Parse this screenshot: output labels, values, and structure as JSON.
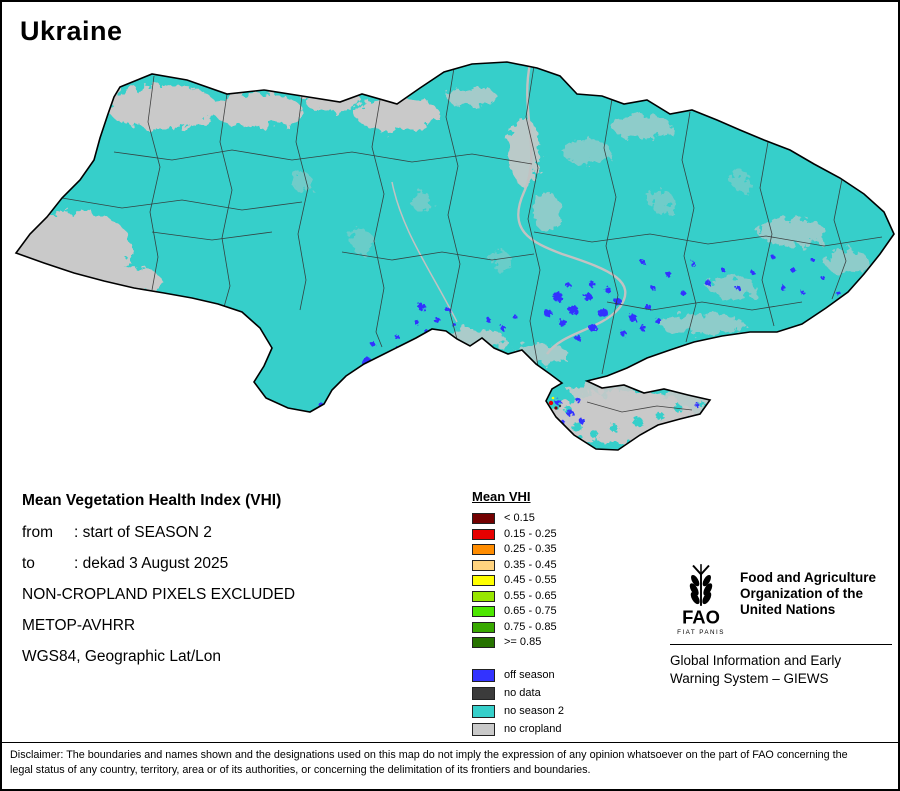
{
  "title": "Ukraine",
  "info": {
    "heading": "Mean Vegetation Health Index (VHI)",
    "rows": [
      {
        "label": "from",
        "value": ": start of SEASON 2"
      },
      {
        "label": "to",
        "value": ": dekad 3 August 2025"
      }
    ],
    "lines": [
      "NON-CROPLAND PIXELS EXCLUDED",
      "METOP-AVHRR",
      "WGS84, Geographic Lat/Lon"
    ]
  },
  "legend": {
    "title": "Mean VHI",
    "classes": [
      {
        "label": "< 0.15",
        "color": "#730000"
      },
      {
        "label": "0.15 - 0.25",
        "color": "#E60000"
      },
      {
        "label": "0.25 - 0.35",
        "color": "#FF8C00"
      },
      {
        "label": "0.35 - 0.45",
        "color": "#FFD37F"
      },
      {
        "label": "0.45 - 0.55",
        "color": "#FFFF00"
      },
      {
        "label": "0.55 - 0.65",
        "color": "#98E600"
      },
      {
        "label": "0.65 - 0.75",
        "color": "#4CE600"
      },
      {
        "label": "0.75 - 0.85",
        "color": "#38A800"
      },
      {
        "label": ">= 0.85",
        "color": "#267300"
      }
    ],
    "extra": [
      {
        "label": "off season",
        "color": "#3333FF"
      },
      {
        "label": "no data",
        "color": "#3B3B3B"
      },
      {
        "label": "no season 2",
        "color": "#36CFCA"
      },
      {
        "label": "no cropland",
        "color": "#C9C9C9"
      }
    ]
  },
  "fao": {
    "acronym": "FAO",
    "motto": "FIAT PANIS",
    "org_name": "Food and Agriculture Organization of the United Nations",
    "giews": "Global Information and Early Warning System – GIEWS"
  },
  "disclaimer": "Disclaimer: The boundaries and names shown and the designations used on this map do not imply the expression of any opinion whatsoever on the part of FAO concerning the legal status of any country, territory, area or of its authorities, or concerning the delimitation of its frontiers and boundaries."
}
